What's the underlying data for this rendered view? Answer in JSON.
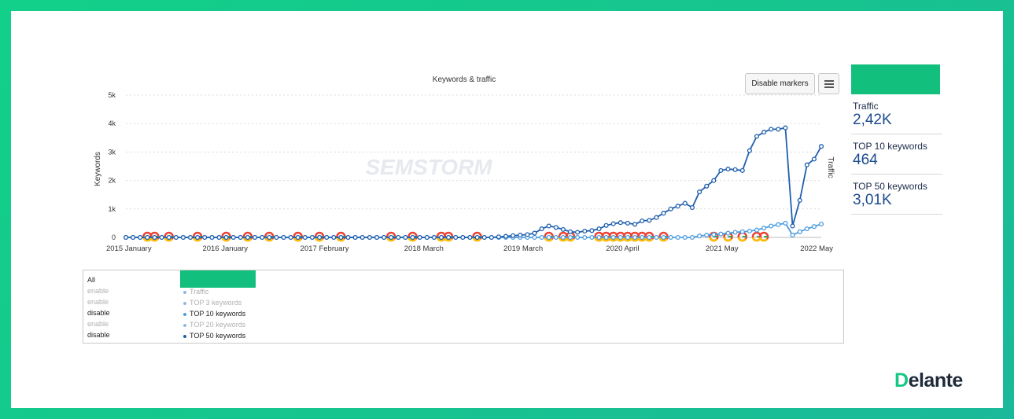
{
  "header": {
    "disable_markers_label": "Disable markers",
    "menu_icon": "hamburger-menu-icon"
  },
  "chart_data": {
    "type": "line",
    "title": "Keywords & traffic",
    "ylabel": "Keywords",
    "y2label": "Traffic",
    "ylim": [
      0,
      5000
    ],
    "yticks": [
      "0",
      "1k",
      "2k",
      "3k",
      "4k",
      "5k"
    ],
    "xtick_labels": [
      "2015 January",
      "2016 January",
      "2017 February",
      "2018 March",
      "2019 March",
      "2020 April",
      "2021 May",
      "2022 May"
    ],
    "watermark": "SEMSTORM",
    "grid": true,
    "series": [
      {
        "name": "TOP 50 keywords",
        "color": "#1f5fae",
        "values": [
          0,
          0,
          0,
          0,
          0,
          0,
          0,
          0,
          0,
          0,
          0,
          0,
          0,
          0,
          0,
          0,
          0,
          0,
          0,
          0,
          0,
          0,
          0,
          0,
          0,
          0,
          0,
          0,
          0,
          0,
          0,
          0,
          0,
          0,
          0,
          0,
          0,
          0,
          0,
          0,
          0,
          0,
          0,
          0,
          0,
          0,
          0,
          0,
          0,
          0,
          0,
          0,
          20,
          40,
          60,
          80,
          100,
          150,
          300,
          400,
          350,
          280,
          200,
          180,
          220,
          240,
          300,
          420,
          480,
          520,
          500,
          460,
          580,
          600,
          700,
          850,
          1000,
          1100,
          1200,
          1050,
          1600,
          1800,
          2000,
          2350,
          2400,
          2380,
          2350,
          3050,
          3550,
          3700,
          3800,
          3800,
          3850,
          400,
          1300,
          2550,
          2750,
          3200
        ]
      },
      {
        "name": "TOP 10 keywords",
        "color": "#4d9de0",
        "values": [
          0,
          0,
          0,
          0,
          0,
          0,
          0,
          0,
          0,
          0,
          0,
          0,
          0,
          0,
          0,
          0,
          0,
          0,
          0,
          0,
          0,
          0,
          0,
          0,
          0,
          0,
          0,
          0,
          0,
          0,
          0,
          0,
          0,
          0,
          0,
          0,
          0,
          0,
          0,
          0,
          0,
          0,
          0,
          0,
          0,
          0,
          0,
          0,
          0,
          0,
          0,
          0,
          0,
          0,
          0,
          0,
          0,
          0,
          0,
          0,
          0,
          0,
          0,
          0,
          0,
          0,
          0,
          0,
          0,
          0,
          0,
          0,
          0,
          0,
          0,
          0,
          0,
          0,
          0,
          0,
          50,
          80,
          100,
          120,
          150,
          180,
          200,
          220,
          260,
          330,
          400,
          450,
          500,
          80,
          200,
          300,
          380,
          470
        ]
      }
    ]
  },
  "legend": {
    "toggles": [
      {
        "label": "All",
        "state": "dark"
      },
      {
        "label": "enable",
        "state": "muted"
      },
      {
        "label": "enable",
        "state": "muted"
      },
      {
        "label": "disable",
        "state": "dark"
      },
      {
        "label": "enable",
        "state": "muted"
      },
      {
        "label": "disable",
        "state": "dark"
      }
    ],
    "series": [
      {
        "label": "Traffic",
        "state": "muted",
        "color": "#8fb9e3"
      },
      {
        "label": "TOP 3 keywords",
        "state": "muted",
        "color": "#8fb9e3"
      },
      {
        "label": "TOP 10 keywords",
        "state": "dark",
        "color": "#4d9de0"
      },
      {
        "label": "TOP 20 keywords",
        "state": "muted",
        "color": "#8fb9e3"
      },
      {
        "label": "TOP 50 keywords",
        "state": "dark",
        "color": "#1f5fae"
      }
    ]
  },
  "metrics": [
    {
      "label": "Traffic",
      "value": "2,42K"
    },
    {
      "label": "TOP 10 keywords",
      "value": "464"
    },
    {
      "label": "TOP 50 keywords",
      "value": "3,01K"
    }
  ],
  "brand": {
    "logo_first": "D",
    "logo_rest": "elante",
    "accent": "#16c685"
  }
}
